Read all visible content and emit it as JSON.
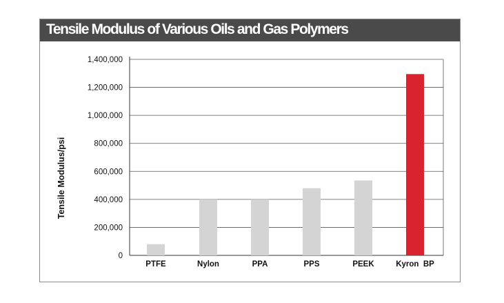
{
  "chart_data": {
    "type": "bar",
    "title": "Tensile Modulus of Various Oils and Gas Polymers",
    "xlabel": "",
    "ylabel": "Tensile Modulus/psi",
    "categories": [
      "PTFE",
      "Nylon",
      "PPA",
      "PPS",
      "PEEK",
      "Kyron  BP"
    ],
    "values": [
      80000,
      400000,
      400000,
      480000,
      535000,
      1295000
    ],
    "ylim": [
      0,
      1400000
    ],
    "yticks": [
      0,
      200000,
      400000,
      600000,
      800000,
      1000000,
      1200000,
      1400000
    ],
    "ytick_labels": [
      "0",
      "200,000",
      "400,000",
      "600,000",
      "800,000",
      "1,000,000",
      "1,200,000",
      "1,400,000"
    ],
    "grid": true,
    "colors": {
      "default_bar": "#d4d4d4",
      "highlight_bar": "#d9232e",
      "title_background": "#4a4a4a",
      "grid": "#555555"
    },
    "highlight_index": 5
  }
}
